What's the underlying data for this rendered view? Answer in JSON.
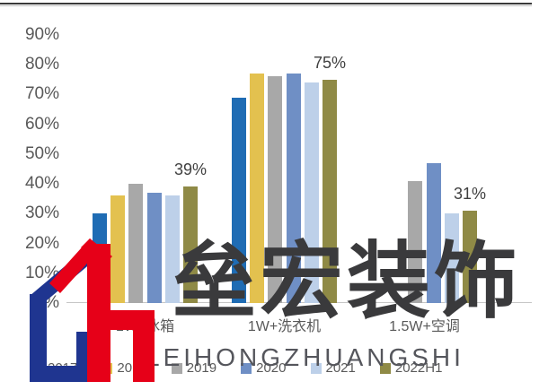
{
  "chart_data": {
    "type": "bar",
    "title": "",
    "categories": [
      "1W+冰箱",
      "1W+洗衣机",
      "1.5W+空调"
    ],
    "series": [
      {
        "name": "2017",
        "color": "#1f6cb4",
        "values": [
          30,
          69,
          null
        ]
      },
      {
        "name": "2018",
        "color": "#e3c14f",
        "values": [
          36,
          77,
          null
        ]
      },
      {
        "name": "2019",
        "color": "#a8a8a8",
        "values": [
          40,
          76,
          41
        ]
      },
      {
        "name": "2020",
        "color": "#6f8fc5",
        "values": [
          37,
          77,
          47
        ]
      },
      {
        "name": "2021",
        "color": "#bdd0e9",
        "values": [
          36,
          74,
          30
        ]
      },
      {
        "name": "2022H1",
        "color": "#8f8a46",
        "values": [
          39,
          75,
          31
        ],
        "data_labels": [
          "39%",
          "75%",
          "31%"
        ]
      }
    ],
    "xlabel": "",
    "ylabel": "",
    "yticks": [
      "90%",
      "80%",
      "70%",
      "60%",
      "50%",
      "40%",
      "30%",
      "20%",
      "10%",
      "0%"
    ],
    "ylim": [
      0,
      95
    ],
    "grid": false,
    "legend_position": "bottom"
  },
  "watermark": {
    "cjk_text": "垒宏装饰",
    "latin_text": "LEIHONGZHUANGSHI",
    "logo_blue": "#1f3590",
    "logo_red": "#e60018"
  },
  "colors": {
    "axis_text": "#595959",
    "data_label_text": "#404040",
    "baseline": "#c6c6c6",
    "top_rule": "#3a3a3a"
  }
}
